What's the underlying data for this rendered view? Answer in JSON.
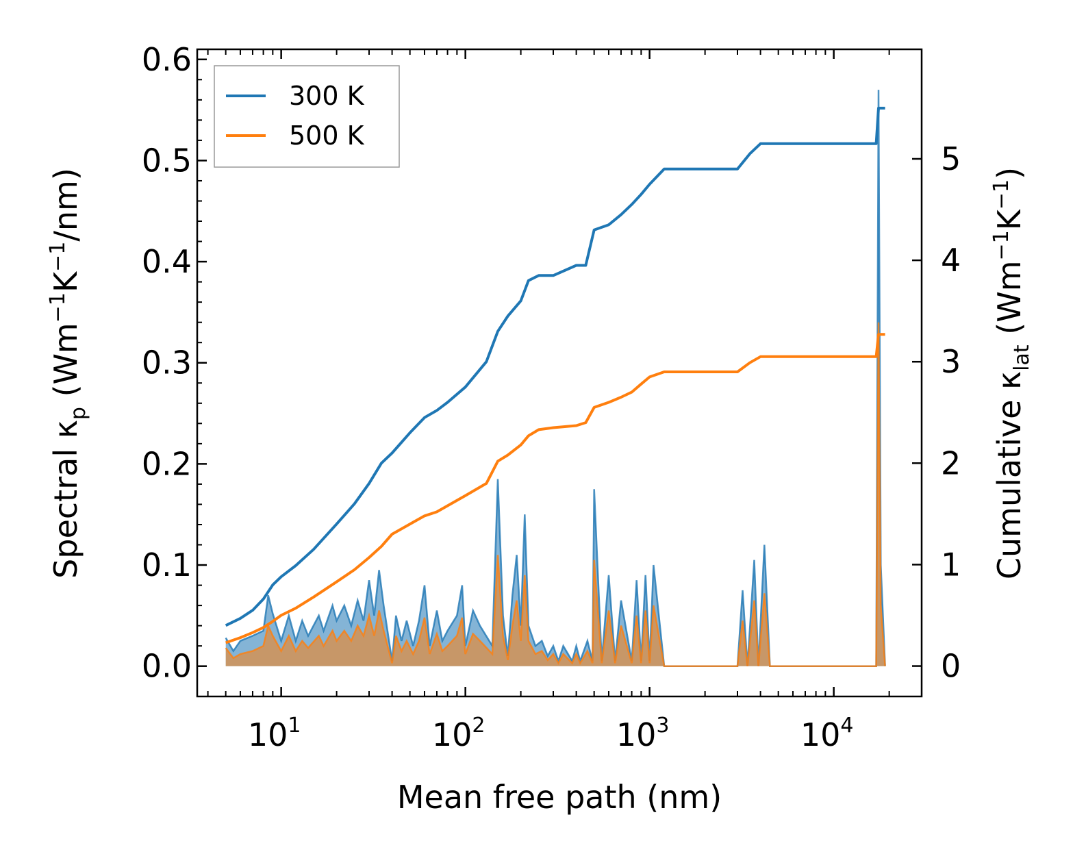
{
  "chart_data": {
    "type": "line",
    "title": "",
    "xlabel": "Mean free path (nm)",
    "xscale": "log",
    "xlim": [
      3.5,
      30000
    ],
    "ylabel_left": {
      "prefix": "Spectral κ",
      "sub": "p",
      "unit_open": " (Wm",
      "sup1": "−1",
      "mid": "K",
      "sup2": "−1",
      "tail": "/nm)"
    },
    "ylabel_right": {
      "prefix": "Cumulative κ",
      "sub": "lat",
      "unit_open": " (Wm",
      "sup1": "−1",
      "mid": "K",
      "sup2": "−1",
      "tail": ")"
    },
    "ylim_left": [
      -0.03,
      0.61
    ],
    "ylim_right": [
      -0.3,
      6.08
    ],
    "x_ticks": [
      {
        "value": 10,
        "base": "10",
        "exp": "1"
      },
      {
        "value": 100,
        "base": "10",
        "exp": "2"
      },
      {
        "value": 1000,
        "base": "10",
        "exp": "3"
      },
      {
        "value": 10000,
        "base": "10",
        "exp": "4"
      }
    ],
    "y_left_ticks": [
      {
        "value": 0.0,
        "label": "0.0"
      },
      {
        "value": 0.1,
        "label": "0.1"
      },
      {
        "value": 0.2,
        "label": "0.2"
      },
      {
        "value": 0.3,
        "label": "0.3"
      },
      {
        "value": 0.4,
        "label": "0.4"
      },
      {
        "value": 0.5,
        "label": "0.5"
      },
      {
        "value": 0.6,
        "label": "0.6"
      }
    ],
    "y_right_ticks": [
      {
        "value": 0,
        "label": "0"
      },
      {
        "value": 1,
        "label": "1"
      },
      {
        "value": 2,
        "label": "2"
      },
      {
        "value": 3,
        "label": "3"
      },
      {
        "value": 4,
        "label": "4"
      },
      {
        "value": 5,
        "label": "5"
      }
    ],
    "legend": {
      "position": "top-left",
      "entries": [
        {
          "name": "300 K",
          "color": "#1f77b4"
        },
        {
          "name": "500 K",
          "color": "#ff7f0e"
        }
      ]
    },
    "series": [
      {
        "name": "300 K",
        "color": "#1f77b4",
        "cumulative": [
          [
            5,
            0.4
          ],
          [
            6,
            0.47
          ],
          [
            7,
            0.55
          ],
          [
            8,
            0.66
          ],
          [
            9,
            0.8
          ],
          [
            10,
            0.88
          ],
          [
            12,
            0.99
          ],
          [
            15,
            1.15
          ],
          [
            20,
            1.4
          ],
          [
            25,
            1.6
          ],
          [
            30,
            1.8
          ],
          [
            35,
            2.0
          ],
          [
            40,
            2.1
          ],
          [
            50,
            2.3
          ],
          [
            60,
            2.45
          ],
          [
            70,
            2.52
          ],
          [
            80,
            2.6
          ],
          [
            100,
            2.75
          ],
          [
            130,
            3.0
          ],
          [
            150,
            3.3
          ],
          [
            170,
            3.45
          ],
          [
            200,
            3.6
          ],
          [
            220,
            3.8
          ],
          [
            250,
            3.85
          ],
          [
            300,
            3.85
          ],
          [
            400,
            3.95
          ],
          [
            450,
            3.95
          ],
          [
            500,
            4.3
          ],
          [
            600,
            4.35
          ],
          [
            700,
            4.45
          ],
          [
            800,
            4.55
          ],
          [
            900,
            4.65
          ],
          [
            1000,
            4.75
          ],
          [
            1200,
            4.9
          ],
          [
            3000,
            4.9
          ],
          [
            3500,
            5.05
          ],
          [
            4000,
            5.15
          ],
          [
            17000,
            5.15
          ],
          [
            17500,
            5.5
          ],
          [
            19000,
            5.5
          ]
        ],
        "spectral": [
          [
            5,
            0.028
          ],
          [
            5.5,
            0.015
          ],
          [
            6,
            0.025
          ],
          [
            7,
            0.03
          ],
          [
            8,
            0.035
          ],
          [
            8.5,
            0.07
          ],
          [
            9,
            0.052
          ],
          [
            10,
            0.025
          ],
          [
            11,
            0.05
          ],
          [
            12,
            0.025
          ],
          [
            13,
            0.045
          ],
          [
            14,
            0.03
          ],
          [
            16,
            0.05
          ],
          [
            17,
            0.035
          ],
          [
            19,
            0.06
          ],
          [
            20,
            0.045
          ],
          [
            22,
            0.06
          ],
          [
            24,
            0.04
          ],
          [
            26,
            0.065
          ],
          [
            28,
            0.045
          ],
          [
            30,
            0.085
          ],
          [
            32,
            0.05
          ],
          [
            34,
            0.095
          ],
          [
            36,
            0.06
          ],
          [
            40,
            0.005
          ],
          [
            42,
            0.05
          ],
          [
            45,
            0.025
          ],
          [
            48,
            0.045
          ],
          [
            52,
            0.02
          ],
          [
            56,
            0.045
          ],
          [
            60,
            0.08
          ],
          [
            64,
            0.02
          ],
          [
            70,
            0.055
          ],
          [
            75,
            0.025
          ],
          [
            80,
            0.035
          ],
          [
            90,
            0.05
          ],
          [
            96,
            0.08
          ],
          [
            100,
            0.02
          ],
          [
            110,
            0.055
          ],
          [
            120,
            0.04
          ],
          [
            140,
            0.02
          ],
          [
            150,
            0.185
          ],
          [
            160,
            0.05
          ],
          [
            170,
            0.01
          ],
          [
            180,
            0.07
          ],
          [
            190,
            0.11
          ],
          [
            200,
            0.04
          ],
          [
            210,
            0.15
          ],
          [
            220,
            0.04
          ],
          [
            240,
            0.02
          ],
          [
            260,
            0.025
          ],
          [
            280,
            0.01
          ],
          [
            300,
            0.02
          ],
          [
            320,
            0.005
          ],
          [
            340,
            0.02
          ],
          [
            380,
            0.005
          ],
          [
            400,
            0.02
          ],
          [
            420,
            0.005
          ],
          [
            460,
            0.025
          ],
          [
            490,
            0.005
          ],
          [
            500,
            0.175
          ],
          [
            550,
            0.005
          ],
          [
            600,
            0.09
          ],
          [
            650,
            0.005
          ],
          [
            700,
            0.065
          ],
          [
            800,
            0.005
          ],
          [
            850,
            0.085
          ],
          [
            900,
            0.005
          ],
          [
            950,
            0.09
          ],
          [
            1000,
            0.005
          ],
          [
            1050,
            0.1
          ],
          [
            1200,
            0
          ],
          [
            3000,
            0
          ],
          [
            3200,
            0.075
          ],
          [
            3400,
            0
          ],
          [
            3700,
            0.105
          ],
          [
            3900,
            0
          ],
          [
            4200,
            0.12
          ],
          [
            4500,
            0
          ],
          [
            17000,
            0
          ],
          [
            17500,
            0.57
          ],
          [
            18000,
            0.1
          ],
          [
            19000,
            0
          ]
        ]
      },
      {
        "name": "500 K",
        "color": "#ff7f0e",
        "cumulative": [
          [
            5,
            0.23
          ],
          [
            6,
            0.28
          ],
          [
            7,
            0.33
          ],
          [
            8,
            0.38
          ],
          [
            9,
            0.44
          ],
          [
            10,
            0.5
          ],
          [
            12,
            0.57
          ],
          [
            15,
            0.68
          ],
          [
            20,
            0.83
          ],
          [
            25,
            0.95
          ],
          [
            30,
            1.07
          ],
          [
            35,
            1.18
          ],
          [
            40,
            1.3
          ],
          [
            50,
            1.4
          ],
          [
            60,
            1.48
          ],
          [
            70,
            1.52
          ],
          [
            80,
            1.58
          ],
          [
            100,
            1.68
          ],
          [
            130,
            1.8
          ],
          [
            150,
            2.02
          ],
          [
            170,
            2.08
          ],
          [
            200,
            2.18
          ],
          [
            220,
            2.27
          ],
          [
            250,
            2.33
          ],
          [
            300,
            2.35
          ],
          [
            400,
            2.37
          ],
          [
            450,
            2.4
          ],
          [
            500,
            2.55
          ],
          [
            600,
            2.6
          ],
          [
            700,
            2.65
          ],
          [
            800,
            2.7
          ],
          [
            900,
            2.78
          ],
          [
            1000,
            2.85
          ],
          [
            1200,
            2.9
          ],
          [
            3000,
            2.9
          ],
          [
            3500,
            2.99
          ],
          [
            4000,
            3.05
          ],
          [
            17000,
            3.05
          ],
          [
            17500,
            3.27
          ],
          [
            19000,
            3.27
          ]
        ],
        "spectral": [
          [
            5,
            0.018
          ],
          [
            5.5,
            0.008
          ],
          [
            6,
            0.012
          ],
          [
            7,
            0.015
          ],
          [
            8,
            0.02
          ],
          [
            8.5,
            0.04
          ],
          [
            9,
            0.03
          ],
          [
            10,
            0.015
          ],
          [
            11,
            0.03
          ],
          [
            12,
            0.015
          ],
          [
            13,
            0.025
          ],
          [
            14,
            0.018
          ],
          [
            16,
            0.03
          ],
          [
            17,
            0.02
          ],
          [
            19,
            0.035
          ],
          [
            20,
            0.025
          ],
          [
            22,
            0.035
          ],
          [
            24,
            0.025
          ],
          [
            26,
            0.04
          ],
          [
            28,
            0.03
          ],
          [
            30,
            0.05
          ],
          [
            32,
            0.03
          ],
          [
            34,
            0.055
          ],
          [
            36,
            0.035
          ],
          [
            40,
            0.003
          ],
          [
            42,
            0.03
          ],
          [
            45,
            0.015
          ],
          [
            48,
            0.025
          ],
          [
            52,
            0.012
          ],
          [
            56,
            0.025
          ],
          [
            60,
            0.048
          ],
          [
            64,
            0.012
          ],
          [
            70,
            0.032
          ],
          [
            75,
            0.015
          ],
          [
            80,
            0.02
          ],
          [
            90,
            0.03
          ],
          [
            96,
            0.048
          ],
          [
            100,
            0.012
          ],
          [
            110,
            0.032
          ],
          [
            120,
            0.025
          ],
          [
            140,
            0.012
          ],
          [
            150,
            0.11
          ],
          [
            160,
            0.03
          ],
          [
            170,
            0.006
          ],
          [
            180,
            0.04
          ],
          [
            190,
            0.065
          ],
          [
            200,
            0.025
          ],
          [
            210,
            0.09
          ],
          [
            220,
            0.025
          ],
          [
            240,
            0.012
          ],
          [
            260,
            0.015
          ],
          [
            280,
            0.006
          ],
          [
            300,
            0.012
          ],
          [
            320,
            0.003
          ],
          [
            340,
            0.012
          ],
          [
            380,
            0.003
          ],
          [
            400,
            0.012
          ],
          [
            420,
            0.003
          ],
          [
            460,
            0.015
          ],
          [
            490,
            0.003
          ],
          [
            500,
            0.105
          ],
          [
            550,
            0.003
          ],
          [
            600,
            0.055
          ],
          [
            650,
            0.003
          ],
          [
            700,
            0.04
          ],
          [
            800,
            0.003
          ],
          [
            850,
            0.05
          ],
          [
            900,
            0.003
          ],
          [
            950,
            0.055
          ],
          [
            1000,
            0.003
          ],
          [
            1050,
            0.06
          ],
          [
            1200,
            0
          ],
          [
            3000,
            0
          ],
          [
            3200,
            0.045
          ],
          [
            3400,
            0
          ],
          [
            3700,
            0.065
          ],
          [
            3900,
            0
          ],
          [
            4200,
            0.072
          ],
          [
            4500,
            0
          ],
          [
            17000,
            0
          ],
          [
            17500,
            0.34
          ],
          [
            18000,
            0.06
          ],
          [
            19000,
            0
          ]
        ]
      }
    ]
  }
}
